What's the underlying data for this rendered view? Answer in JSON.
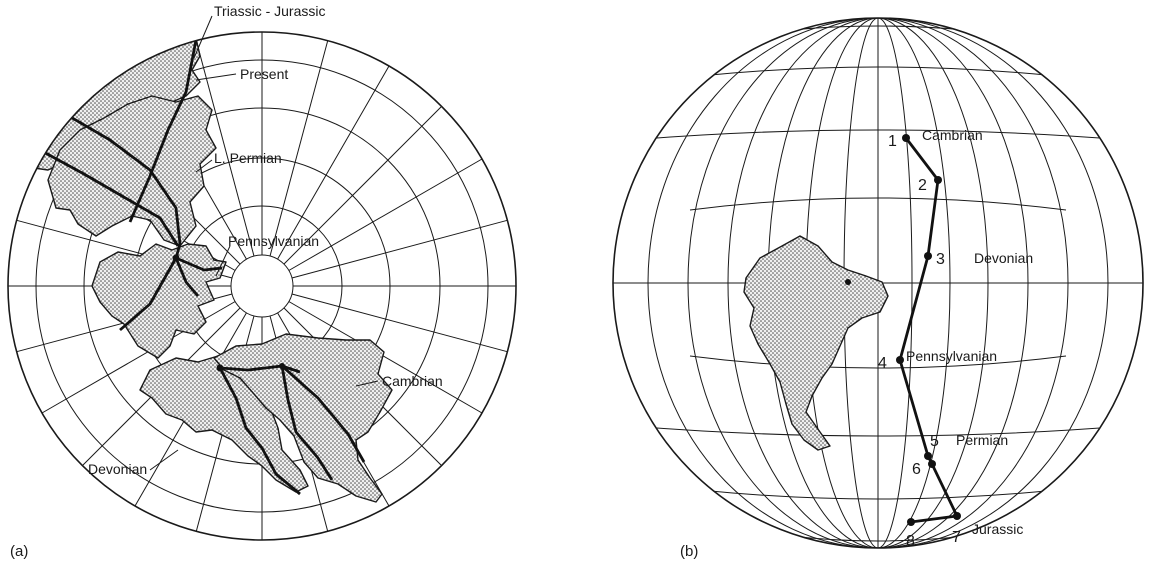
{
  "panel_a": {
    "label": "(a)",
    "period_labels": {
      "triassic_jurassic": "Triassic - Jurassic",
      "present": "Present",
      "late_permian": "L. Permian",
      "pennsylvanian": "Pennsylvanian",
      "cambrian": "Cambrian",
      "devonian": "Devonian"
    }
  },
  "panel_b": {
    "label": "(b)",
    "path_points": [
      {
        "number": "1",
        "period": "Cambrian"
      },
      {
        "number": "2",
        "period": ""
      },
      {
        "number": "3",
        "period": "Devonian"
      },
      {
        "number": "4",
        "period": "Pennsylvanian"
      },
      {
        "number": "5",
        "period": "Permian"
      },
      {
        "number": "6",
        "period": ""
      },
      {
        "number": "7",
        "period": "Jurassic"
      },
      {
        "number": "8",
        "period": ""
      }
    ]
  }
}
